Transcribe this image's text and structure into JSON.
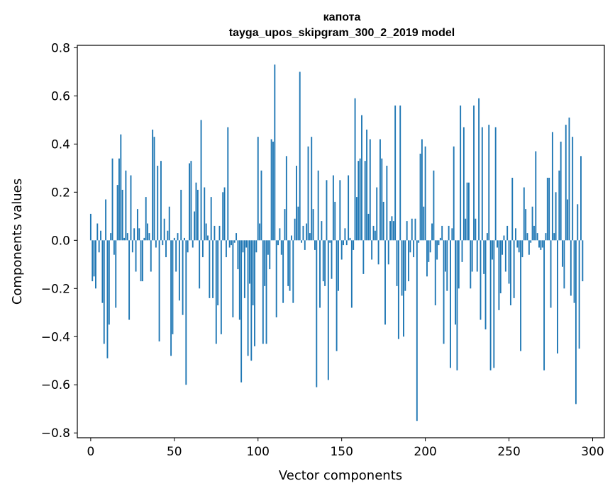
{
  "chart_data": {
    "type": "bar",
    "title": "капота",
    "subtitle": "tayga_upos_skipgram_300_2_2019 model",
    "xlabel": "Vector components",
    "ylabel": "Components values",
    "xlim": [
      -8,
      307
    ],
    "ylim": [
      -0.82,
      0.81
    ],
    "xticks": [
      0,
      50,
      100,
      150,
      200,
      250,
      300
    ],
    "xtick_labels": [
      "0",
      "50",
      "100",
      "150",
      "200",
      "250",
      "300"
    ],
    "yticks": [
      0.8,
      0.6,
      0.4,
      0.2,
      0.0,
      -0.2,
      -0.4,
      -0.6,
      -0.8
    ],
    "ytick_labels": [
      "0.8",
      "0.6",
      "0.4",
      "0.2",
      "0.0",
      "−0.2",
      "−0.4",
      "−0.6",
      "−0.8"
    ],
    "bar_color": "#1f77b4",
    "values": [
      0.11,
      -0.17,
      -0.15,
      -0.2,
      0.07,
      -0.05,
      0.04,
      -0.26,
      -0.43,
      0.17,
      -0.49,
      -0.35,
      0.03,
      0.34,
      -0.06,
      -0.28,
      0.23,
      0.34,
      0.44,
      0.21,
      0.01,
      0.29,
      0.03,
      -0.33,
      0.27,
      -0.05,
      0.05,
      -0.13,
      0.13,
      0.05,
      -0.17,
      -0.17,
      0.01,
      0.18,
      0.07,
      0.03,
      -0.13,
      0.46,
      0.43,
      -0.03,
      0.31,
      -0.42,
      0.33,
      -0.02,
      0.09,
      -0.07,
      0.04,
      0.14,
      -0.48,
      -0.39,
      0.01,
      -0.13,
      0.03,
      -0.25,
      0.21,
      -0.31,
      0.01,
      -0.6,
      -0.05,
      0.32,
      0.33,
      -0.03,
      0.12,
      0.24,
      0.21,
      -0.2,
      0.5,
      -0.07,
      0.22,
      0.07,
      0.02,
      -0.24,
      0.18,
      -0.24,
      0.06,
      -0.43,
      -0.27,
      0.06,
      -0.39,
      0.2,
      0.22,
      -0.07,
      0.47,
      -0.03,
      -0.02,
      -0.32,
      -0.01,
      0.03,
      -0.12,
      -0.33,
      -0.59,
      -0.05,
      -0.24,
      -0.03,
      -0.48,
      -0.18,
      -0.5,
      -0.27,
      -0.44,
      -0.05,
      0.43,
      0.07,
      0.29,
      -0.43,
      -0.19,
      -0.43,
      -0.06,
      -0.12,
      0.42,
      0.41,
      0.73,
      -0.32,
      -0.02,
      0.05,
      -0.06,
      -0.26,
      0.13,
      0.35,
      -0.19,
      -0.21,
      0.02,
      -0.26,
      0.09,
      0.31,
      0.14,
      0.7,
      -0.01,
      0.06,
      -0.04,
      0.07,
      0.39,
      0.03,
      0.43,
      0.13,
      -0.04,
      -0.61,
      0.29,
      -0.28,
      0.08,
      -0.17,
      -0.19,
      0.25,
      -0.58,
      -0.01,
      -0.16,
      0.27,
      0.16,
      -0.46,
      -0.21,
      0.25,
      -0.08,
      -0.02,
      0.05,
      -0.02,
      0.27,
      0.01,
      -0.28,
      -0.04,
      0.59,
      0.18,
      0.33,
      0.34,
      0.52,
      -0.14,
      0.33,
      0.46,
      0.11,
      0.42,
      -0.08,
      0.06,
      0.04,
      0.22,
      -0.1,
      0.42,
      0.34,
      0.16,
      -0.35,
      0.31,
      -0.1,
      0.08,
      0.1,
      0.08,
      0.56,
      -0.19,
      -0.41,
      0.56,
      -0.23,
      -0.4,
      -0.21,
      0.08,
      -0.17,
      -0.05,
      0.09,
      -0.07,
      0.09,
      -0.75,
      -0.01,
      0.36,
      0.42,
      0.14,
      0.39,
      -0.15,
      -0.09,
      -0.05,
      0.07,
      0.29,
      -0.27,
      -0.08,
      -0.02,
      0.01,
      0.06,
      -0.43,
      -0.13,
      -0.21,
      0.06,
      -0.53,
      0.05,
      0.39,
      -0.35,
      -0.54,
      -0.2,
      0.56,
      -0.09,
      0.47,
      0.09,
      0.24,
      0.24,
      -0.2,
      -0.13,
      0.56,
      0.09,
      -0.13,
      0.59,
      -0.33,
      0.47,
      -0.14,
      -0.37,
      0.03,
      0.48,
      -0.54,
      -0.08,
      -0.53,
      0.47,
      -0.03,
      -0.29,
      -0.22,
      -0.06,
      0.02,
      -0.13,
      0.06,
      -0.18,
      -0.27,
      0.26,
      -0.24,
      0.05,
      -0.03,
      -0.05,
      -0.46,
      -0.07,
      0.22,
      0.13,
      0.03,
      -0.06,
      -0.01,
      0.14,
      0.06,
      0.37,
      0.03,
      -0.03,
      -0.04,
      -0.03,
      -0.54,
      0.03,
      0.26,
      0.26,
      -0.28,
      0.45,
      0.03,
      0.2,
      -0.47,
      0.29,
      0.41,
      -0.11,
      -0.2,
      0.48,
      0.17,
      0.51,
      -0.23,
      0.43,
      -0.26,
      -0.68,
      0.15,
      -0.45,
      0.35,
      -0.17
    ]
  }
}
